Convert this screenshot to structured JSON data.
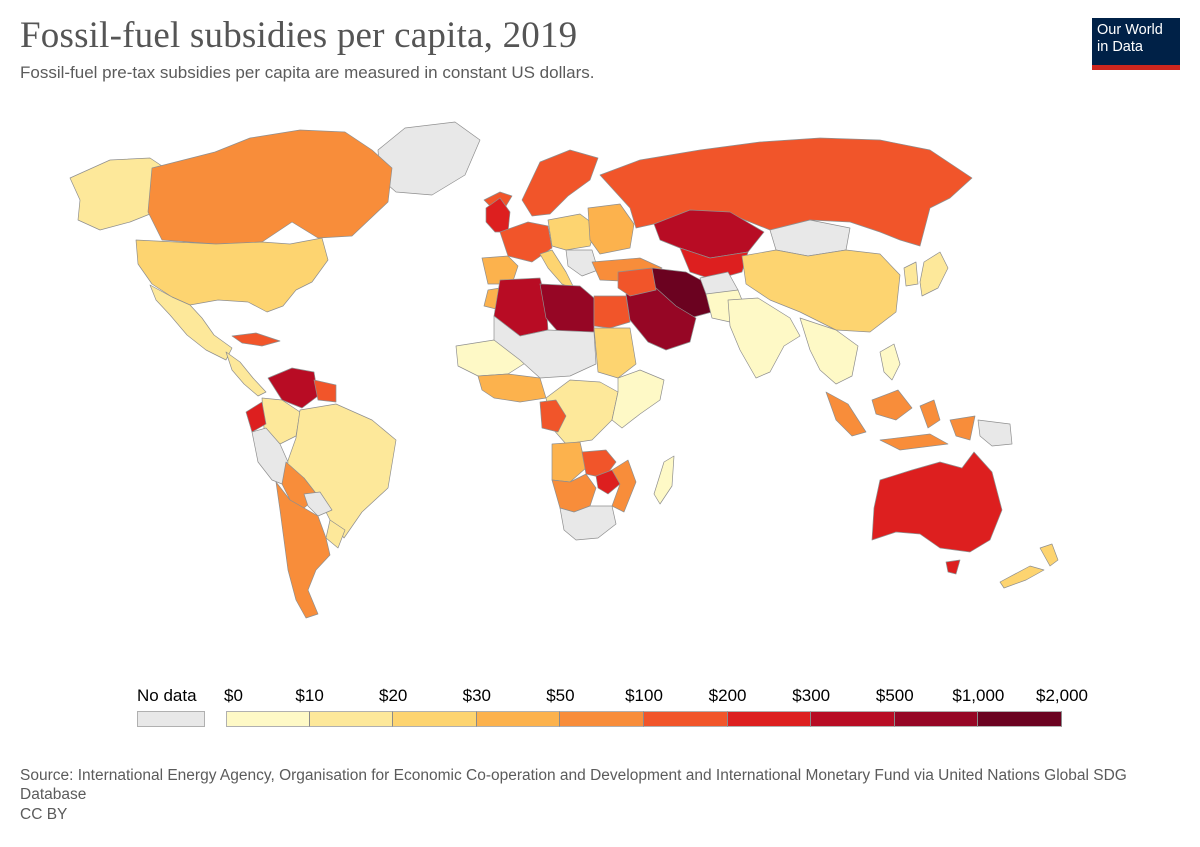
{
  "header": {
    "title": "Fossil-fuel subsidies per capita, 2019",
    "subtitle": "Fossil-fuel pre-tax subsidies per capita are measured in constant US dollars.",
    "logo_line1": "Our World",
    "logo_line2": "in Data"
  },
  "legend": {
    "no_data_label": "No data",
    "ticks": [
      "$0",
      "$10",
      "$20",
      "$30",
      "$50",
      "$100",
      "$200",
      "$300",
      "$500",
      "$1,000",
      "$2,000"
    ],
    "bin_colors": [
      "#fef9c6",
      "#fde89a",
      "#fdd470",
      "#fcb24d",
      "#f88d3a",
      "#f1552a",
      "#dd1f1f",
      "#b80c24",
      "#960625",
      "#6b0220"
    ],
    "no_data_color": "#e8e8e8"
  },
  "colors": {
    "ocean": "#ffffff",
    "no_data": "#e8e8e8",
    "border": "#8f8f8f"
  },
  "regions": [
    {
      "name": "greenland",
      "color": "#e8e8e8"
    },
    {
      "name": "alaska",
      "color": "#fde89a"
    },
    {
      "name": "canada",
      "color": "#f88d3a"
    },
    {
      "name": "usa",
      "color": "#fdd470"
    },
    {
      "name": "mexico",
      "color": "#fde89a"
    },
    {
      "name": "central-america",
      "color": "#fde89a"
    },
    {
      "name": "cuba",
      "color": "#f1552a"
    },
    {
      "name": "venezuela",
      "color": "#b80c24"
    },
    {
      "name": "colombia",
      "color": "#fde89a"
    },
    {
      "name": "ecuador",
      "color": "#dd1f1f"
    },
    {
      "name": "guyana-suriname",
      "color": "#f1552a"
    },
    {
      "name": "brazil",
      "color": "#fde89a"
    },
    {
      "name": "peru",
      "color": "#e8e8e8"
    },
    {
      "name": "bolivia",
      "color": "#f88d3a"
    },
    {
      "name": "paraguay",
      "color": "#e8e8e8"
    },
    {
      "name": "uruguay",
      "color": "#fde89a"
    },
    {
      "name": "argentina-chile",
      "color": "#f88d3a"
    },
    {
      "name": "iceland",
      "color": "#f1552a"
    },
    {
      "name": "uk-ireland",
      "color": "#dd1f1f"
    },
    {
      "name": "scandinavia",
      "color": "#f1552a"
    },
    {
      "name": "western-europe",
      "color": "#f1552a"
    },
    {
      "name": "central-europe",
      "color": "#fdd470"
    },
    {
      "name": "eastern-europe",
      "color": "#fcb24d"
    },
    {
      "name": "iberia",
      "color": "#fcb24d"
    },
    {
      "name": "italy",
      "color": "#fdd470"
    },
    {
      "name": "balkans",
      "color": "#e8e8e8"
    },
    {
      "name": "turkey",
      "color": "#f88d3a"
    },
    {
      "name": "russia",
      "color": "#f1552a"
    },
    {
      "name": "kazakhstan",
      "color": "#b80c24"
    },
    {
      "name": "central-asia",
      "color": "#dd1f1f"
    },
    {
      "name": "mongolia",
      "color": "#e8e8e8"
    },
    {
      "name": "china",
      "color": "#fdd470"
    },
    {
      "name": "korea-japan",
      "color": "#fde89a"
    },
    {
      "name": "iran",
      "color": "#6b0220"
    },
    {
      "name": "saudi-gulf",
      "color": "#960625"
    },
    {
      "name": "iraq-levant",
      "color": "#f1552a"
    },
    {
      "name": "afghanistan",
      "color": "#e8e8e8"
    },
    {
      "name": "pakistan",
      "color": "#fef9c6"
    },
    {
      "name": "india",
      "color": "#fef9c6"
    },
    {
      "name": "southeast-asia",
      "color": "#fef9c6"
    },
    {
      "name": "indonesia",
      "color": "#f88d3a"
    },
    {
      "name": "png",
      "color": "#e8e8e8"
    },
    {
      "name": "philippines",
      "color": "#fef9c6"
    },
    {
      "name": "australia",
      "color": "#dd1f1f"
    },
    {
      "name": "new-zealand",
      "color": "#fdd470"
    },
    {
      "name": "morocco",
      "color": "#fcb24d"
    },
    {
      "name": "algeria",
      "color": "#b80c24"
    },
    {
      "name": "libya",
      "color": "#960625"
    },
    {
      "name": "egypt",
      "color": "#f1552a"
    },
    {
      "name": "sahel",
      "color": "#fef9c6"
    },
    {
      "name": "mali-niger-chad",
      "color": "#e8e8e8"
    },
    {
      "name": "sudan",
      "color": "#fdd470"
    },
    {
      "name": "west-africa",
      "color": "#fcb24d"
    },
    {
      "name": "central-africa",
      "color": "#fde89a"
    },
    {
      "name": "east-africa",
      "color": "#fef9c6"
    },
    {
      "name": "gabon-congo",
      "color": "#f1552a"
    },
    {
      "name": "angola",
      "color": "#fcb24d"
    },
    {
      "name": "zambia",
      "color": "#f1552a"
    },
    {
      "name": "zimbabwe",
      "color": "#dd1f1f"
    },
    {
      "name": "mozambique",
      "color": "#f88d3a"
    },
    {
      "name": "namibia-botswana",
      "color": "#f88d3a"
    },
    {
      "name": "south-africa",
      "color": "#e8e8e8"
    },
    {
      "name": "madagascar",
      "color": "#fef9c6"
    }
  ],
  "footer": {
    "source": "Source: International Energy Agency, Organisation for Economic Co-operation and Development and International Monetary Fund via United Nations Global SDG Database",
    "license": "CC BY"
  }
}
